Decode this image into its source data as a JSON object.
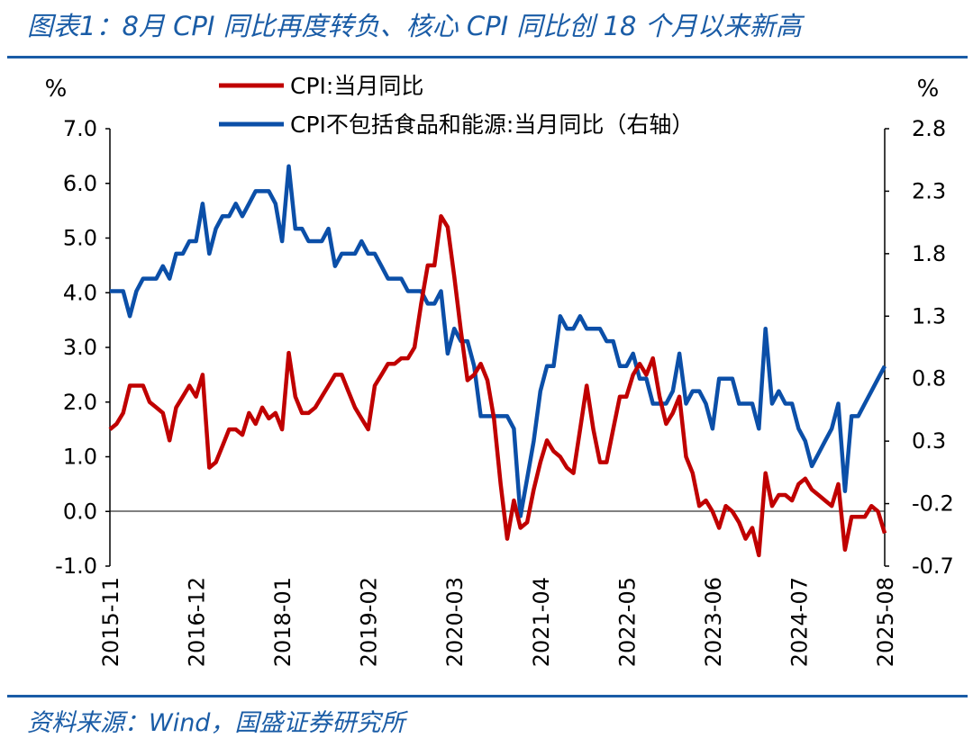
{
  "figure_title": "图表1：8月 CPI 同比再度转负、核心 CPI 同比创 18 个月以来新高",
  "source_note": "资料来源：Wind，国盛证券研究所",
  "chart_data": {
    "type": "line",
    "left_unit": "%",
    "right_unit": "%",
    "left_ylim": [
      -1.0,
      7.0
    ],
    "right_ylim": [
      -0.7,
      2.8
    ],
    "left_ticks": [
      "7.0",
      "6.0",
      "5.0",
      "4.0",
      "3.0",
      "2.0",
      "1.0",
      "0.0",
      "-1.0"
    ],
    "right_ticks": [
      "2.8",
      "2.3",
      "1.8",
      "1.3",
      "0.8",
      "0.3",
      "-0.2",
      "-0.7"
    ],
    "x_start": "2015-11",
    "x_end": "2025-08",
    "x_ticks": [
      "2015-11",
      "2016-12",
      "2018-01",
      "2019-02",
      "2020-03",
      "2021-04",
      "2022-05",
      "2023-06",
      "2024-07",
      "2025-08"
    ],
    "colors": {
      "cpi": "#c00000",
      "core": "#0b4fa8"
    },
    "series": [
      {
        "name": "CPI:当月同比",
        "axis": "left",
        "x": [
          "2015-11",
          "2015-12",
          "2016-01",
          "2016-02",
          "2016-03",
          "2016-04",
          "2016-05",
          "2016-06",
          "2016-07",
          "2016-08",
          "2016-09",
          "2016-10",
          "2016-11",
          "2016-12",
          "2017-01",
          "2017-02",
          "2017-03",
          "2017-04",
          "2017-05",
          "2017-06",
          "2017-07",
          "2017-08",
          "2017-09",
          "2017-10",
          "2017-11",
          "2017-12",
          "2018-01",
          "2018-02",
          "2018-03",
          "2018-04",
          "2018-05",
          "2018-06",
          "2018-07",
          "2018-08",
          "2018-09",
          "2018-10",
          "2018-11",
          "2018-12",
          "2019-01",
          "2019-02",
          "2019-03",
          "2019-04",
          "2019-05",
          "2019-06",
          "2019-07",
          "2019-08",
          "2019-09",
          "2019-10",
          "2019-11",
          "2019-12",
          "2020-01",
          "2020-02",
          "2020-03",
          "2020-04",
          "2020-05",
          "2020-06",
          "2020-07",
          "2020-08",
          "2020-09",
          "2020-10",
          "2020-11",
          "2020-12",
          "2021-01",
          "2021-02",
          "2021-03",
          "2021-04",
          "2021-05",
          "2021-06",
          "2021-07",
          "2021-08",
          "2021-09",
          "2021-10",
          "2021-11",
          "2021-12",
          "2022-01",
          "2022-02",
          "2022-03",
          "2022-04",
          "2022-05",
          "2022-06",
          "2022-07",
          "2022-08",
          "2022-09",
          "2022-10",
          "2022-11",
          "2022-12",
          "2023-01",
          "2023-02",
          "2023-03",
          "2023-04",
          "2023-05",
          "2023-06",
          "2023-07",
          "2023-08",
          "2023-09",
          "2023-10",
          "2023-11",
          "2023-12",
          "2024-01",
          "2024-02",
          "2024-03",
          "2024-04",
          "2024-05",
          "2024-06",
          "2024-07",
          "2024-08",
          "2024-09",
          "2024-10",
          "2024-11",
          "2024-12",
          "2025-01",
          "2025-02",
          "2025-03",
          "2025-04",
          "2025-05",
          "2025-06",
          "2025-07",
          "2025-08"
        ],
        "values": [
          1.5,
          1.6,
          1.8,
          2.3,
          2.3,
          2.3,
          2.0,
          1.9,
          1.8,
          1.3,
          1.9,
          2.1,
          2.3,
          2.1,
          2.5,
          0.8,
          0.9,
          1.2,
          1.5,
          1.5,
          1.4,
          1.8,
          1.6,
          1.9,
          1.7,
          1.8,
          1.5,
          2.9,
          2.1,
          1.8,
          1.8,
          1.9,
          2.1,
          2.3,
          2.5,
          2.5,
          2.2,
          1.9,
          1.7,
          1.5,
          2.3,
          2.5,
          2.7,
          2.7,
          2.8,
          2.8,
          3.0,
          3.8,
          4.5,
          4.5,
          5.4,
          5.2,
          4.3,
          3.3,
          2.4,
          2.5,
          2.7,
          2.4,
          1.7,
          0.5,
          -0.5,
          0.2,
          -0.3,
          -0.2,
          0.4,
          0.9,
          1.3,
          1.1,
          1.0,
          0.8,
          0.7,
          1.5,
          2.3,
          1.5,
          0.9,
          0.9,
          1.5,
          2.1,
          2.1,
          2.5,
          2.7,
          2.5,
          2.8,
          2.1,
          1.6,
          1.8,
          2.1,
          1.0,
          0.7,
          0.1,
          0.2,
          0.0,
          -0.3,
          0.1,
          0.0,
          -0.2,
          -0.5,
          -0.3,
          -0.8,
          0.7,
          0.1,
          0.3,
          0.3,
          0.2,
          0.5,
          0.6,
          0.4,
          0.3,
          0.2,
          0.1,
          0.5,
          -0.7,
          -0.1,
          -0.1,
          -0.1,
          0.1,
          0.0,
          -0.4
        ]
      },
      {
        "name": "CPI不包括食品和能源:当月同比（右轴）",
        "axis": "right",
        "x": [
          "2015-11",
          "2015-12",
          "2016-01",
          "2016-02",
          "2016-03",
          "2016-04",
          "2016-05",
          "2016-06",
          "2016-07",
          "2016-08",
          "2016-09",
          "2016-10",
          "2016-11",
          "2016-12",
          "2017-01",
          "2017-02",
          "2017-03",
          "2017-04",
          "2017-05",
          "2017-06",
          "2017-07",
          "2017-08",
          "2017-09",
          "2017-10",
          "2017-11",
          "2017-12",
          "2018-01",
          "2018-02",
          "2018-03",
          "2018-04",
          "2018-05",
          "2018-06",
          "2018-07",
          "2018-08",
          "2018-09",
          "2018-10",
          "2018-11",
          "2018-12",
          "2019-01",
          "2019-02",
          "2019-03",
          "2019-04",
          "2019-05",
          "2019-06",
          "2019-07",
          "2019-08",
          "2019-09",
          "2019-10",
          "2019-11",
          "2019-12",
          "2020-01",
          "2020-02",
          "2020-03",
          "2020-04",
          "2020-05",
          "2020-06",
          "2020-07",
          "2020-08",
          "2020-09",
          "2020-10",
          "2020-11",
          "2020-12",
          "2021-01",
          "2021-02",
          "2021-03",
          "2021-04",
          "2021-05",
          "2021-06",
          "2021-07",
          "2021-08",
          "2021-09",
          "2021-10",
          "2021-11",
          "2021-12",
          "2022-01",
          "2022-02",
          "2022-03",
          "2022-04",
          "2022-05",
          "2022-06",
          "2022-07",
          "2022-08",
          "2022-09",
          "2022-10",
          "2022-11",
          "2022-12",
          "2023-01",
          "2023-02",
          "2023-03",
          "2023-04",
          "2023-05",
          "2023-06",
          "2023-07",
          "2023-08",
          "2023-09",
          "2023-10",
          "2023-11",
          "2023-12",
          "2024-01",
          "2024-02",
          "2024-03",
          "2024-04",
          "2024-05",
          "2024-06",
          "2024-07",
          "2024-08",
          "2024-09",
          "2024-10",
          "2024-11",
          "2024-12",
          "2025-01",
          "2025-02",
          "2025-03",
          "2025-04",
          "2025-05",
          "2025-06",
          "2025-07",
          "2025-08"
        ],
        "values": [
          1.5,
          1.5,
          1.5,
          1.3,
          1.5,
          1.6,
          1.6,
          1.6,
          1.7,
          1.6,
          1.8,
          1.8,
          1.9,
          1.9,
          2.2,
          1.8,
          2.0,
          2.1,
          2.1,
          2.2,
          2.1,
          2.2,
          2.3,
          2.3,
          2.3,
          2.2,
          1.9,
          2.5,
          2.0,
          2.0,
          1.9,
          1.9,
          1.9,
          2.0,
          1.7,
          1.8,
          1.8,
          1.8,
          1.9,
          1.8,
          1.8,
          1.7,
          1.6,
          1.6,
          1.6,
          1.5,
          1.5,
          1.5,
          1.4,
          1.4,
          1.5,
          1.0,
          1.2,
          1.1,
          1.1,
          0.9,
          0.5,
          0.5,
          0.5,
          0.5,
          0.5,
          0.4,
          -0.3,
          0.0,
          0.3,
          0.7,
          0.9,
          0.9,
          1.3,
          1.2,
          1.2,
          1.3,
          1.2,
          1.2,
          1.2,
          1.1,
          1.1,
          0.9,
          0.9,
          1.0,
          0.8,
          0.8,
          0.6,
          0.6,
          0.6,
          0.7,
          1.0,
          0.6,
          0.7,
          0.7,
          0.6,
          0.4,
          0.8,
          0.8,
          0.8,
          0.6,
          0.6,
          0.6,
          0.4,
          1.2,
          0.6,
          0.7,
          0.6,
          0.6,
          0.4,
          0.3,
          0.1,
          0.2,
          0.3,
          0.4,
          0.6,
          -0.1,
          0.5,
          0.5,
          0.6,
          0.7,
          0.8,
          0.9
        ]
      }
    ]
  }
}
